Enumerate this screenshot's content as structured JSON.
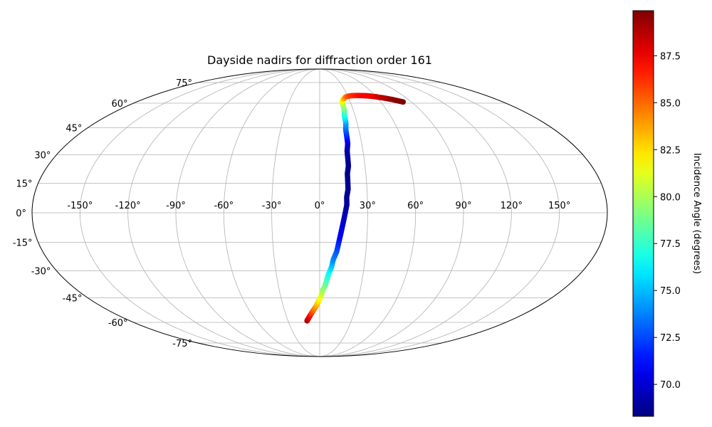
{
  "chart_data": {
    "type": "scatter",
    "projection": "mollweide",
    "title": "Dayside nadirs for diffraction order 161",
    "grid": true,
    "x_ticks": [
      -150,
      -120,
      -90,
      -60,
      -30,
      0,
      30,
      60,
      90,
      120,
      150
    ],
    "x_tick_labels": [
      "-150°",
      "-120°",
      "-90°",
      "-60°",
      "-30°",
      "0°",
      "30°",
      "60°",
      "90°",
      "120°",
      "150°"
    ],
    "y_ticks": [
      -75,
      -60,
      -45,
      -30,
      -15,
      0,
      15,
      30,
      45,
      60,
      75
    ],
    "y_tick_labels": [
      "-75°",
      "-60°",
      "-45°",
      "-30°",
      "-15°",
      "0°",
      "15°",
      "30°",
      "45°",
      "60°",
      "75°"
    ],
    "colorbar": {
      "label": "Incidence Angle (degrees)",
      "range": [
        68.3,
        89.9
      ],
      "ticks": [
        70.0,
        72.5,
        75.0,
        77.5,
        80.0,
        82.5,
        85.0,
        87.5
      ],
      "tick_labels": [
        "70.0",
        "72.5",
        "75.0",
        "77.5",
        "80.0",
        "82.5",
        "85.0",
        "87.5"
      ],
      "colormap": "jet"
    },
    "series": [
      {
        "marker": "circle",
        "lon": [
          -12,
          -11,
          -9,
          -7,
          -5,
          -3,
          -1,
          1,
          2,
          4,
          5,
          6,
          8,
          9,
          11,
          12,
          13,
          14,
          15,
          16,
          17,
          17,
          18,
          18,
          18,
          19,
          19,
          19,
          20,
          20,
          20,
          21,
          21,
          22,
          22,
          23,
          25,
          27,
          29,
          33,
          38,
          43,
          47,
          51,
          55,
          59,
          62,
          66,
          70,
          74,
          78,
          82
        ],
        "lat": [
          -59,
          -58,
          -56,
          -54,
          -52,
          -50,
          -47,
          -44,
          -41,
          -38,
          -35,
          -32,
          -28,
          -24,
          -20,
          -16,
          -12,
          -8,
          -4,
          0,
          4,
          8,
          12,
          16,
          20,
          24,
          28,
          32,
          36,
          40,
          44,
          48,
          52,
          56,
          60,
          62,
          63,
          64,
          64.5,
          65,
          65.2,
          65.2,
          65.1,
          65,
          64.7,
          64.4,
          64,
          63.6,
          63,
          62.4,
          61.6,
          60.8
        ],
        "incidence_angle": [
          89.5,
          88.5,
          87.5,
          86.2,
          85,
          84,
          82.5,
          81.3,
          80,
          79,
          78,
          77,
          75.5,
          74,
          73,
          72,
          71,
          70.5,
          70,
          69.5,
          69,
          68.8,
          68.7,
          68.6,
          68.6,
          68.6,
          68.8,
          69.2,
          70,
          71.5,
          73,
          74.5,
          76.5,
          78.5,
          80.5,
          82,
          83,
          84,
          85,
          86,
          86.5,
          87,
          87.2,
          87.4,
          87.6,
          87.8,
          88.2,
          88.6,
          89,
          89.4,
          89.7,
          89.9
        ]
      }
    ]
  }
}
